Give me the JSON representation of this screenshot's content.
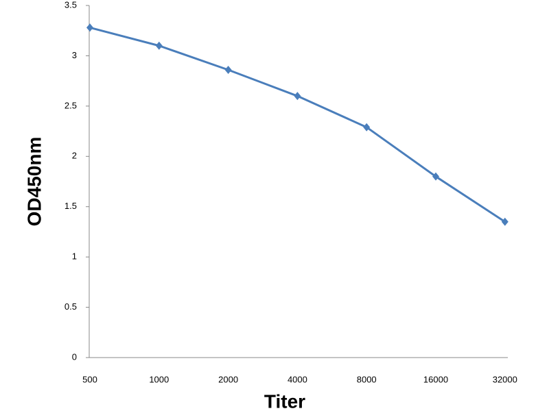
{
  "chart_data": {
    "type": "line",
    "x_label": "Titer",
    "y_label": "OD450nm",
    "categories": [
      "500",
      "1000",
      "2000",
      "4000",
      "8000",
      "16000",
      "32000"
    ],
    "values": [
      3.28,
      3.1,
      2.86,
      2.6,
      2.29,
      1.8,
      1.35
    ],
    "color": "#4a7ebb",
    "ylim": [
      0,
      3.5
    ],
    "yticks": [
      0,
      0.5,
      1,
      1.5,
      2,
      2.5,
      3,
      3.5
    ],
    "grid": false
  }
}
